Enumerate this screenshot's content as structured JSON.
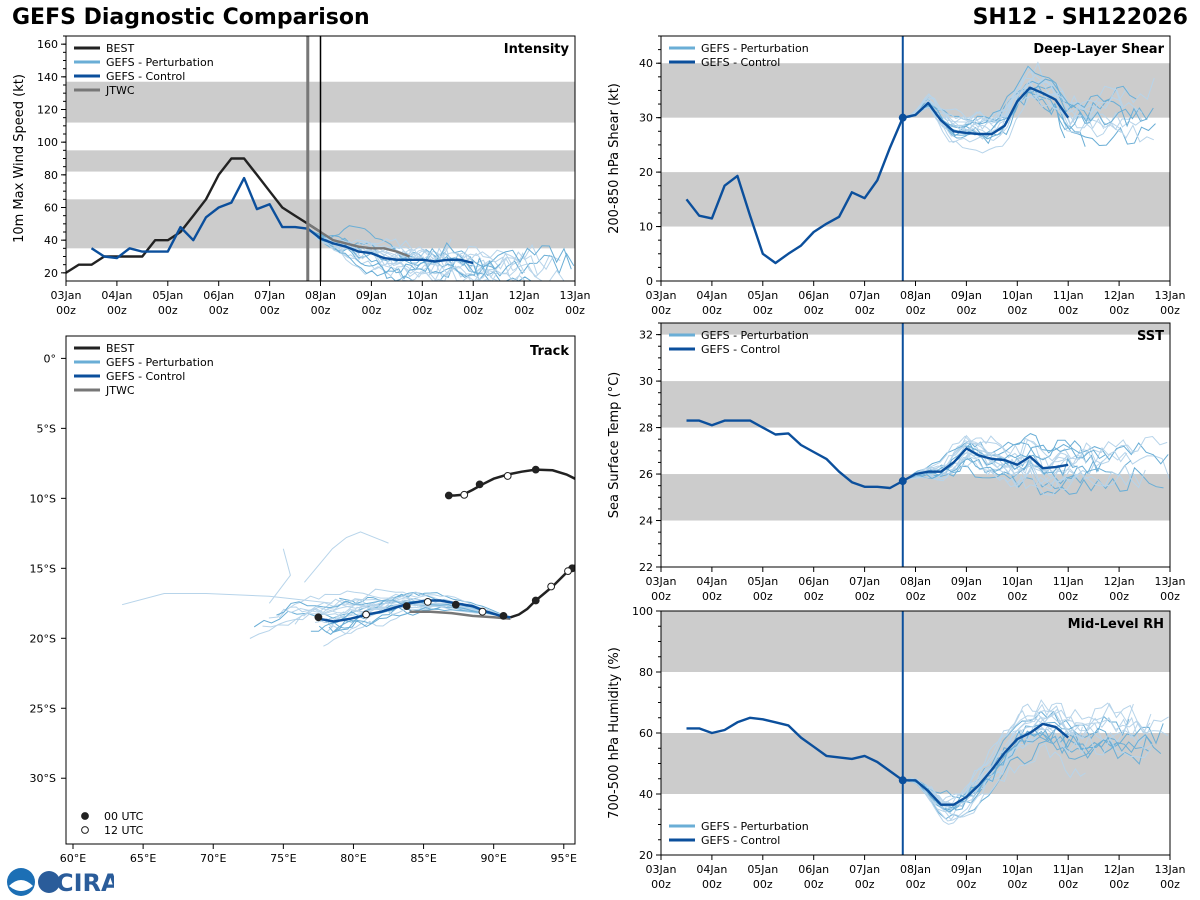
{
  "header": {
    "title": "GEFS Diagnostic Comparison",
    "storm_id": "SH12 - SH122026"
  },
  "logo": {
    "text": "CIRA"
  },
  "colors": {
    "best": "#222222",
    "pert": "#6aaed6",
    "pert_light": "#b7d4ea",
    "control": "#0b4f9c",
    "jtwc": "#777777",
    "band": "#cccccc"
  },
  "time_ticks": [
    "03Jan\n00z",
    "04Jan\n00z",
    "05Jan\n00z",
    "06Jan\n00z",
    "07Jan\n00z",
    "08Jan\n00z",
    "09Jan\n00z",
    "10Jan\n00z",
    "11Jan\n00z",
    "12Jan\n00z",
    "13Jan\n00z"
  ],
  "chart_data": [
    {
      "id": "intensity",
      "type": "line",
      "title": "Intensity",
      "ylabel": "10m Max Wind Speed (kt)",
      "xlim": [
        0,
        10
      ],
      "ylim": [
        15,
        165
      ],
      "yticks": [
        20,
        40,
        60,
        80,
        100,
        120,
        140,
        160
      ],
      "bands": [
        [
          35,
          65
        ],
        [
          82,
          95
        ],
        [
          112,
          137
        ]
      ],
      "vlines": [
        {
          "x": 4.75,
          "color": "#777777",
          "width": 3
        },
        {
          "x": 5.0,
          "color": "#000000",
          "width": 1.5
        }
      ],
      "legend": [
        "BEST",
        "GEFS - Perturbation",
        "GEFS - Control",
        "JTWC"
      ],
      "series": [
        {
          "name": "BEST",
          "role": "best",
          "x": [
            0,
            0.25,
            0.5,
            0.75,
            1.0,
            1.25,
            1.5,
            1.75,
            2.0,
            2.25,
            2.5,
            2.75,
            3.0,
            3.25,
            3.5,
            3.75,
            4.0,
            4.25,
            4.5,
            4.75,
            5.0
          ],
          "y": [
            20,
            25,
            25,
            30,
            30,
            30,
            30,
            40,
            40,
            45,
            55,
            65,
            80,
            90,
            90,
            80,
            70,
            60,
            55,
            50,
            45
          ]
        },
        {
          "name": "GEFS - Control",
          "role": "control",
          "x": [
            0.5,
            0.75,
            1.0,
            1.25,
            1.5,
            1.75,
            2.0,
            2.25,
            2.5,
            2.75,
            3.0,
            3.25,
            3.5,
            3.75,
            4.0,
            4.25,
            4.5,
            4.75,
            5.0,
            5.25,
            5.5,
            5.75,
            6.0,
            6.25,
            6.5,
            6.75,
            7.0,
            7.25,
            7.5,
            7.75,
            8.0
          ],
          "y": [
            35,
            30,
            29,
            35,
            33,
            33,
            33,
            48,
            40,
            54,
            60,
            63,
            78,
            59,
            62,
            48,
            48,
            47,
            41,
            38,
            36,
            33,
            32,
            29,
            28,
            28,
            28,
            27,
            28,
            28,
            26
          ]
        },
        {
          "name": "JTWC",
          "role": "jtwc",
          "x": [
            4.75,
            5.0,
            5.25,
            5.5,
            5.75,
            6.0,
            6.25,
            6.5,
            6.75
          ],
          "y": [
            50,
            45,
            40,
            38,
            36,
            35,
            35,
            33,
            30
          ]
        }
      ]
    },
    {
      "id": "shear",
      "type": "line",
      "title": "Deep-Layer Shear",
      "ylabel": "200-850 hPa Shear (kt)",
      "xlim": [
        0,
        10
      ],
      "ylim": [
        0,
        45
      ],
      "yticks": [
        0,
        10,
        20,
        30,
        40
      ],
      "bands": [
        [
          10,
          20
        ],
        [
          30,
          40
        ]
      ],
      "vlines": [
        {
          "x": 4.75,
          "color": "#0b4f9c",
          "width": 2
        }
      ],
      "legend": [
        "GEFS - Perturbation",
        "GEFS - Control"
      ],
      "series": [
        {
          "name": "GEFS - Control",
          "role": "control",
          "x": [
            0.5,
            0.75,
            1.0,
            1.25,
            1.5,
            1.75,
            2.0,
            2.25,
            2.5,
            2.75,
            3.0,
            3.25,
            3.5,
            3.75,
            4.0,
            4.25,
            4.5,
            4.75,
            5.0,
            5.25,
            5.5,
            5.75,
            6.0,
            6.25,
            6.5,
            6.75,
            7.0,
            7.25,
            7.5,
            7.75,
            8.0
          ],
          "y": [
            15,
            12,
            11.5,
            17.5,
            19.3,
            12,
            5,
            3.3,
            5,
            6.5,
            9,
            10.5,
            11.8,
            16.3,
            15.2,
            18.5,
            24.5,
            30,
            30.5,
            32.7,
            29.5,
            27.5,
            27.2,
            27.0,
            27.0,
            28.5,
            33,
            35.5,
            34.5,
            33.3,
            30
          ]
        }
      ]
    },
    {
      "id": "sst",
      "type": "line",
      "title": "SST",
      "ylabel": "Sea Surface Temp (°C)",
      "xlim": [
        0,
        10
      ],
      "ylim": [
        22,
        32.5
      ],
      "yticks": [
        22,
        24,
        26,
        28,
        30,
        32
      ],
      "bands": [
        [
          24,
          26
        ],
        [
          28,
          30
        ],
        [
          32,
          32.5
        ]
      ],
      "vlines": [
        {
          "x": 4.75,
          "color": "#0b4f9c",
          "width": 2
        }
      ],
      "legend": [
        "GEFS - Perturbation",
        "GEFS - Control"
      ],
      "series": [
        {
          "name": "GEFS - Control",
          "role": "control",
          "x": [
            0.5,
            0.75,
            1.0,
            1.25,
            1.5,
            1.75,
            2.0,
            2.25,
            2.5,
            2.75,
            3.0,
            3.25,
            3.5,
            3.75,
            4.0,
            4.25,
            4.5,
            4.75,
            5.0,
            5.25,
            5.5,
            5.75,
            6.0,
            6.25,
            6.5,
            6.75,
            7.0,
            7.25,
            7.5,
            7.75,
            8.0
          ],
          "y": [
            28.3,
            28.3,
            28.1,
            28.3,
            28.3,
            28.3,
            28.0,
            27.7,
            27.75,
            27.25,
            26.95,
            26.65,
            26.1,
            25.65,
            25.45,
            25.45,
            25.4,
            25.7,
            26.0,
            26.1,
            26.1,
            26.5,
            27.1,
            26.8,
            26.65,
            26.6,
            26.4,
            26.75,
            26.25,
            26.3,
            26.4
          ]
        }
      ]
    },
    {
      "id": "rh",
      "type": "line",
      "title": "Mid-Level RH",
      "ylabel": "700-500 hPa Humidity (%)",
      "xlim": [
        0,
        10
      ],
      "ylim": [
        20,
        100
      ],
      "yticks": [
        20,
        40,
        60,
        80,
        100
      ],
      "bands": [
        [
          40,
          60
        ],
        [
          80,
          100
        ]
      ],
      "vlines": [
        {
          "x": 4.75,
          "color": "#0b4f9c",
          "width": 2
        }
      ],
      "legend": [
        "GEFS - Perturbation",
        "GEFS - Control"
      ],
      "series": [
        {
          "name": "GEFS - Control",
          "role": "control",
          "x": [
            0.5,
            0.75,
            1.0,
            1.25,
            1.5,
            1.75,
            2.0,
            2.25,
            2.5,
            2.75,
            3.0,
            3.25,
            3.5,
            3.75,
            4.0,
            4.25,
            4.5,
            4.75,
            5.0,
            5.25,
            5.5,
            5.75,
            6.0,
            6.25,
            6.5,
            6.75,
            7.0,
            7.25,
            7.5,
            7.75,
            8.0
          ],
          "y": [
            61.5,
            61.5,
            60,
            61,
            63.5,
            65,
            64.5,
            63.5,
            62.5,
            58.5,
            55.5,
            52.5,
            52,
            51.5,
            52.5,
            50.5,
            47.5,
            44.5,
            44.5,
            41,
            36.5,
            36.5,
            39,
            43,
            48,
            53.5,
            58,
            60,
            63,
            62,
            58.5
          ]
        }
      ]
    },
    {
      "id": "track",
      "type": "map-track",
      "title": "Track",
      "xlim": [
        59.5,
        95.8
      ],
      "ylim": [
        -34.7,
        1.6
      ],
      "xticks": [
        60,
        65,
        70,
        75,
        80,
        85,
        90,
        95
      ],
      "xtick_labels": [
        "60°E",
        "65°E",
        "70°E",
        "75°E",
        "80°E",
        "85°E",
        "90°E",
        "95°E"
      ],
      "yticks": [
        0,
        -5,
        -10,
        -15,
        -20,
        -25,
        -30
      ],
      "ytick_labels": [
        "0°",
        "5°S",
        "10°S",
        "15°S",
        "20°S",
        "25°S",
        "30°S"
      ],
      "legend": [
        "BEST",
        "GEFS - Perturbation",
        "GEFS - Control",
        "JTWC"
      ],
      "marker_legend": [
        "00 UTC",
        "12 UTC"
      ],
      "best_segment_north": {
        "lon": [
          86.8,
          87.2,
          87.8,
          88.5,
          89.2,
          90.0,
          91.0,
          92.0,
          93.0,
          94.2,
          95.2,
          95.8
        ],
        "lat": [
          -9.8,
          -9.8,
          -9.75,
          -9.4,
          -9.0,
          -8.6,
          -8.3,
          -8.1,
          -7.95,
          -8.0,
          -8.3,
          -8.6
        ]
      },
      "best_segment_south": {
        "lon": [
          91.2,
          91.8,
          92.4,
          93.0,
          93.6,
          94.2,
          94.7,
          95.3,
          95.8
        ],
        "lat": [
          -18.5,
          -18.3,
          -17.9,
          -17.3,
          -16.8,
          -16.3,
          -15.8,
          -15.2,
          -14.8
        ]
      },
      "best_markers_00": [
        [
          86.8,
          -9.8
        ],
        [
          89.0,
          -9.0
        ],
        [
          93.0,
          -7.95
        ],
        [
          93.0,
          -17.3
        ],
        [
          95.6,
          -15.0
        ]
      ],
      "best_markers_12": [
        [
          87.9,
          -9.75
        ],
        [
          91.0,
          -8.4
        ],
        [
          94.1,
          -16.3
        ],
        [
          95.3,
          -15.2
        ]
      ],
      "control": {
        "lon": [
          91.2,
          90.5,
          89.5,
          88.5,
          87.3,
          86.2,
          85.2,
          84.0,
          83.0,
          82.0,
          81.0,
          79.8,
          78.6,
          77.5
        ],
        "lat": [
          -18.5,
          -18.4,
          -18.1,
          -17.7,
          -17.5,
          -17.3,
          -17.3,
          -17.5,
          -17.8,
          -18.1,
          -18.3,
          -18.6,
          -18.8,
          -18.6
        ]
      },
      "control_markers_00": [
        [
          90.7,
          -18.4
        ],
        [
          87.3,
          -17.6
        ],
        [
          83.8,
          -17.7
        ],
        [
          77.5,
          -18.5
        ]
      ],
      "control_markers_12": [
        [
          89.2,
          -18.1
        ],
        [
          85.3,
          -17.4
        ],
        [
          80.9,
          -18.3
        ]
      ],
      "jtwc": {
        "lon": [
          91.2,
          90.0,
          88.5,
          87.0,
          85.5,
          84.0
        ],
        "lat": [
          -18.6,
          -18.5,
          -18.4,
          -18.2,
          -18.1,
          -18.1
        ]
      }
    }
  ]
}
